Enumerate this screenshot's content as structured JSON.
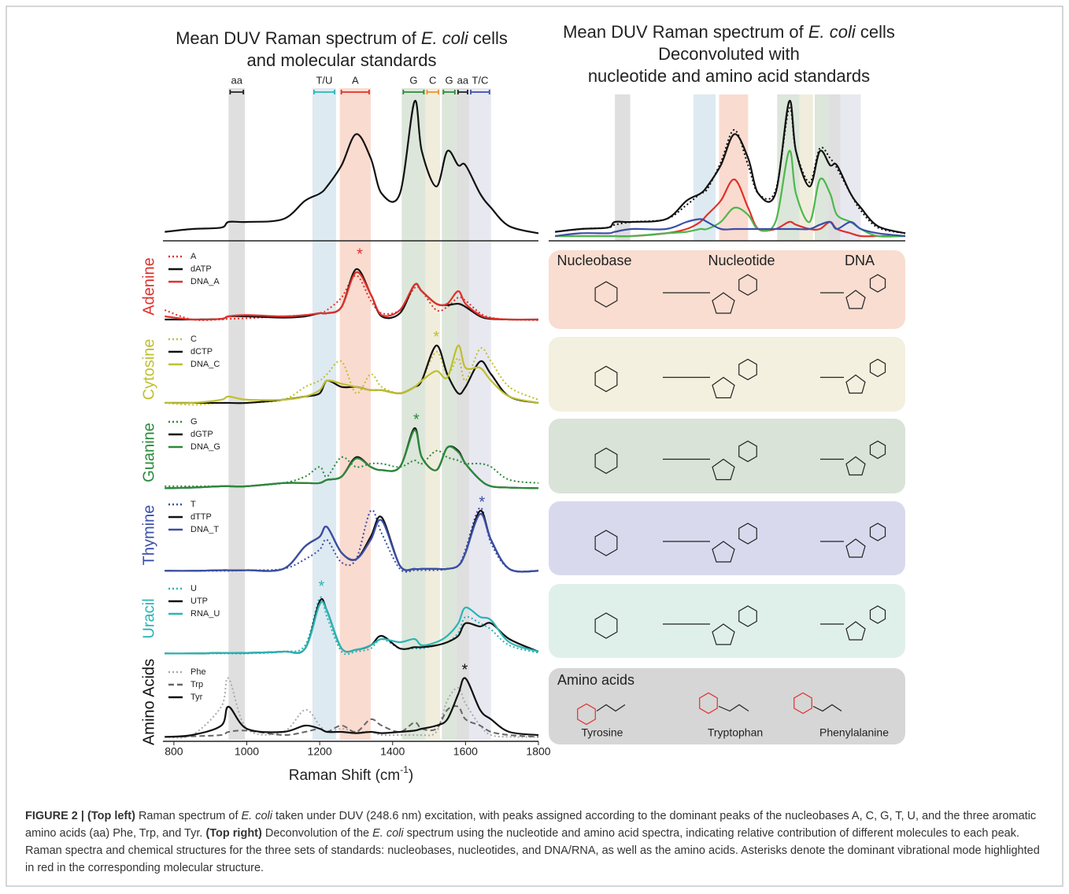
{
  "chart_data": [
    {
      "type": "line",
      "title_lines": [
        [
          {
            "text": "Mean DUV Raman spectrum of "
          },
          {
            "text": "E. coli",
            "italic": true
          },
          {
            "text": " cells"
          }
        ],
        [
          {
            "text": "and molecular standards"
          }
        ]
      ],
      "x": [
        775,
        850,
        930,
        950,
        1000,
        1100,
        1160,
        1200,
        1220,
        1260,
        1300,
        1340,
        1370,
        1420,
        1460,
        1480,
        1520,
        1550,
        1580,
        1600,
        1640,
        1670,
        1720,
        1800
      ],
      "xlim": [
        770,
        1800
      ],
      "xticks": [
        800,
        1000,
        1200,
        1400,
        1600,
        1800
      ],
      "xlabel": [
        {
          "text": "Raman Shift (cm"
        },
        {
          "text": "-1",
          "sup": true
        },
        {
          "text": ")"
        }
      ],
      "bands": [
        {
          "label": "aa",
          "range": [
            950,
            995
          ],
          "color": "#222222",
          "fill": "#d9d9d9"
        },
        {
          "label": "T/U",
          "range": [
            1180,
            1245
          ],
          "color": "#2bb5b5",
          "fill": "#d8e6ee"
        },
        {
          "label": "A",
          "range": [
            1255,
            1340
          ],
          "color": "#e0312b",
          "fill": "#f9d5c8"
        },
        {
          "label": "G",
          "range": [
            1425,
            1490
          ],
          "color": "#2a8a3a",
          "fill": "#d6e2d3"
        },
        {
          "label": "C",
          "range": [
            1490,
            1530
          ],
          "color": "#f0902a",
          "fill": "#efead7"
        },
        {
          "label": "G",
          "range": [
            1535,
            1575
          ],
          "color": "#2a8a3a",
          "fill": "#d6e2d3"
        },
        {
          "label": "aa",
          "range": [
            1575,
            1610
          ],
          "color": "#222222",
          "fill": "#d9d9d9"
        },
        {
          "label": "T/C",
          "range": [
            1610,
            1670
          ],
          "color": "#3a4fa8",
          "fill": "#e4e4ee"
        }
      ],
      "series": [
        {
          "color": "#111111",
          "dash": "solid",
          "values": [
            0.03,
            0.05,
            0.06,
            0.1,
            0.1,
            0.12,
            0.25,
            0.3,
            0.35,
            0.5,
            0.72,
            0.55,
            0.3,
            0.3,
            0.95,
            0.6,
            0.35,
            0.6,
            0.5,
            0.5,
            0.3,
            0.2,
            0.07,
            0.02
          ]
        }
      ]
    },
    {
      "type": "line",
      "title_lines": [
        [
          {
            "text": "Mean DUV Raman spectrum of "
          },
          {
            "text": "E. coli",
            "italic": true
          },
          {
            "text": " cells"
          }
        ],
        [
          {
            "text": "Deconvoluted with"
          }
        ],
        [
          {
            "text": "nucleotide and amino acid standards"
          }
        ]
      ],
      "series": [
        {
          "color": "#111111",
          "dash": "solid",
          "values": [
            0.03,
            0.05,
            0.06,
            0.1,
            0.1,
            0.12,
            0.25,
            0.3,
            0.35,
            0.5,
            0.72,
            0.55,
            0.3,
            0.3,
            0.95,
            0.6,
            0.35,
            0.6,
            0.5,
            0.5,
            0.3,
            0.2,
            0.07,
            0.02
          ]
        },
        {
          "color": "#111111",
          "dash": "dotted",
          "values": [
            0.03,
            0.05,
            0.06,
            0.08,
            0.1,
            0.12,
            0.22,
            0.3,
            0.33,
            0.52,
            0.75,
            0.5,
            0.3,
            0.32,
            0.9,
            0.6,
            0.38,
            0.62,
            0.55,
            0.48,
            0.3,
            0.18,
            0.06,
            0.02
          ]
        },
        {
          "color": "#e0312b",
          "dash": "solid",
          "values": [
            0,
            0,
            0,
            0,
            0,
            0.02,
            0.05,
            0.1,
            0.15,
            0.25,
            0.4,
            0.2,
            0.05,
            0.05,
            0.1,
            0.08,
            0.05,
            0.05,
            0.1,
            0.05,
            0.02,
            0,
            0,
            0
          ]
        },
        {
          "color": "#4cb84c",
          "dash": "solid",
          "values": [
            0,
            0,
            0,
            0,
            0,
            0.02,
            0.03,
            0.05,
            0.05,
            0.1,
            0.2,
            0.15,
            0.05,
            0.1,
            0.6,
            0.3,
            0.1,
            0.4,
            0.3,
            0.15,
            0.1,
            0.05,
            0,
            0
          ]
        },
        {
          "color": "#3a4fa8",
          "dash": "solid",
          "values": [
            0,
            0.02,
            0.02,
            0.03,
            0.05,
            0.05,
            0.1,
            0.12,
            0.1,
            0.05,
            0.05,
            0.05,
            0.05,
            0.05,
            0.05,
            0.05,
            0.05,
            0.08,
            0.1,
            0.05,
            0.1,
            0.05,
            0.02,
            0
          ]
        }
      ]
    },
    {
      "type": "line",
      "title": "Adenine",
      "title_color": "#e0312b",
      "asterisk": {
        "label": "*",
        "x": 1310,
        "color": "#e0312b"
      },
      "series": [
        {
          "name": "A",
          "color": "#e0312b",
          "dash": "dotted",
          "values": [
            0.2,
            0.05,
            0.05,
            0.06,
            0.07,
            0.1,
            0.12,
            0.15,
            0.2,
            0.4,
            0.75,
            0.35,
            0.15,
            0.2,
            0.55,
            0.5,
            0.2,
            0.25,
            0.4,
            0.35,
            0.15,
            0.08,
            0.05,
            0.04
          ]
        },
        {
          "name": "dATP",
          "color": "#111111",
          "dash": "solid",
          "values": [
            0.05,
            0.05,
            0.06,
            0.1,
            0.1,
            0.08,
            0.1,
            0.15,
            0.15,
            0.25,
            0.85,
            0.45,
            0.1,
            0.15,
            0.6,
            0.5,
            0.3,
            0.28,
            0.3,
            0.25,
            0.1,
            0.06,
            0.05,
            0.05
          ]
        },
        {
          "name": "DNA_A",
          "color": "#e0312b",
          "dash": "solid",
          "values": [
            0.1,
            0.05,
            0.06,
            0.1,
            0.12,
            0.1,
            0.12,
            0.15,
            0.15,
            0.25,
            0.8,
            0.45,
            0.12,
            0.2,
            0.6,
            0.5,
            0.3,
            0.3,
            0.5,
            0.3,
            0.12,
            0.07,
            0.05,
            0.05
          ]
        }
      ]
    },
    {
      "type": "line",
      "title": "Cytosine",
      "title_color": "#bfbf2e",
      "asterisk": {
        "label": "*",
        "x": 1520,
        "color": "#bfbf2e"
      },
      "series": [
        {
          "name": "C",
          "color": "#bfbf2e",
          "dash": "dotted",
          "values": [
            0.05,
            0.02,
            0.05,
            0.05,
            0.05,
            0.1,
            0.3,
            0.4,
            0.5,
            0.7,
            0.2,
            0.5,
            0.3,
            0.2,
            0.3,
            0.4,
            0.85,
            0.5,
            0.75,
            0.4,
            0.9,
            0.7,
            0.3,
            0.1
          ]
        },
        {
          "name": "dCTP",
          "color": "#111111",
          "dash": "solid",
          "values": [
            0.05,
            0.05,
            0.05,
            0.05,
            0.05,
            0.1,
            0.15,
            0.2,
            0.4,
            0.3,
            0.3,
            0.25,
            0.25,
            0.2,
            0.3,
            0.4,
            0.95,
            0.5,
            0.2,
            0.3,
            0.7,
            0.5,
            0.15,
            0.05
          ]
        },
        {
          "name": "DNA_C",
          "color": "#bfbf2e",
          "dash": "solid",
          "values": [
            0.05,
            0.05,
            0.1,
            0.15,
            0.1,
            0.1,
            0.15,
            0.25,
            0.4,
            0.35,
            0.3,
            0.25,
            0.25,
            0.2,
            0.3,
            0.4,
            0.55,
            0.45,
            0.95,
            0.6,
            0.6,
            0.4,
            0.15,
            0.05
          ]
        }
      ]
    },
    {
      "type": "line",
      "title": "Guanine",
      "title_color": "#2a8a3a",
      "asterisk": {
        "label": "*",
        "x": 1465,
        "color": "#2a8a3a"
      },
      "series": [
        {
          "name": "G",
          "color": "#2a8a3a",
          "dash": "dotted",
          "values": [
            0.05,
            0.05,
            0.05,
            0.05,
            0.05,
            0.1,
            0.2,
            0.35,
            0.2,
            0.5,
            0.35,
            0.4,
            0.4,
            0.35,
            0.45,
            0.4,
            0.6,
            0.5,
            0.45,
            0.4,
            0.4,
            0.35,
            0.15,
            0.1
          ]
        },
        {
          "name": "dGTP",
          "color": "#111111",
          "dash": "solid",
          "values": [
            0.02,
            0.03,
            0.05,
            0.05,
            0.05,
            0.1,
            0.1,
            0.1,
            0.15,
            0.2,
            0.5,
            0.35,
            0.3,
            0.35,
            0.95,
            0.5,
            0.3,
            0.65,
            0.6,
            0.4,
            0.15,
            0.05,
            0.03,
            0.02
          ]
        },
        {
          "name": "DNA_G",
          "color": "#2a8a3a",
          "dash": "solid",
          "values": [
            0.02,
            0.03,
            0.05,
            0.05,
            0.05,
            0.1,
            0.1,
            0.1,
            0.15,
            0.2,
            0.48,
            0.35,
            0.3,
            0.35,
            0.92,
            0.5,
            0.3,
            0.65,
            0.58,
            0.4,
            0.15,
            0.05,
            0.03,
            0.02
          ]
        }
      ]
    },
    {
      "type": "line",
      "title": "Thymine",
      "title_color": "#3a4fa8",
      "asterisk": {
        "label": "*",
        "x": 1645,
        "color": "#3a4fa8"
      },
      "series": [
        {
          "name": "T",
          "color": "#3a4fa8",
          "dash": "dotted",
          "values": [
            0.02,
            0.02,
            0.02,
            0.02,
            0.03,
            0.05,
            0.2,
            0.35,
            0.5,
            0.15,
            0.2,
            0.95,
            0.6,
            0.05,
            0.03,
            0.03,
            0.03,
            0.05,
            0.1,
            0.35,
            1.0,
            0.45,
            0.05,
            0.02
          ]
        },
        {
          "name": "dTTP",
          "color": "#111111",
          "dash": "solid",
          "values": [
            0.02,
            0.02,
            0.03,
            0.03,
            0.03,
            0.05,
            0.4,
            0.55,
            0.7,
            0.3,
            0.2,
            0.55,
            0.85,
            0.1,
            0.05,
            0.05,
            0.05,
            0.05,
            0.1,
            0.3,
            0.95,
            0.5,
            0.05,
            0.02
          ]
        },
        {
          "name": "DNA_T",
          "color": "#3a4fa8",
          "dash": "solid",
          "values": [
            0.02,
            0.02,
            0.03,
            0.03,
            0.03,
            0.05,
            0.4,
            0.55,
            0.7,
            0.3,
            0.2,
            0.5,
            0.8,
            0.1,
            0.05,
            0.05,
            0.05,
            0.05,
            0.1,
            0.3,
            0.9,
            0.5,
            0.05,
            0.02
          ]
        }
      ]
    },
    {
      "type": "line",
      "title": "Uracil",
      "title_color": "#2bb5b5",
      "asterisk": {
        "label": "*",
        "x": 1205,
        "color": "#2bb5b5"
      },
      "series": [
        {
          "name": "U",
          "color": "#2bb5b5",
          "dash": "dotted",
          "values": [
            0.02,
            0.02,
            0.02,
            0.02,
            0.02,
            0.05,
            0.15,
            0.9,
            0.6,
            0.05,
            0.05,
            0.1,
            0.25,
            0.1,
            0.1,
            0.1,
            0.15,
            0.2,
            0.35,
            0.6,
            0.5,
            0.4,
            0.15,
            0.03
          ]
        },
        {
          "name": "UTP",
          "color": "#111111",
          "dash": "solid",
          "values": [
            0.02,
            0.02,
            0.03,
            0.03,
            0.03,
            0.05,
            0.1,
            0.85,
            0.7,
            0.1,
            0.08,
            0.15,
            0.3,
            0.1,
            0.12,
            0.12,
            0.15,
            0.2,
            0.3,
            0.5,
            0.45,
            0.5,
            0.25,
            0.05
          ]
        },
        {
          "name": "RNA_U",
          "color": "#2bb5b5",
          "dash": "solid",
          "values": [
            0.02,
            0.02,
            0.03,
            0.03,
            0.03,
            0.05,
            0.1,
            0.8,
            0.7,
            0.1,
            0.08,
            0.15,
            0.25,
            0.2,
            0.25,
            0.15,
            0.2,
            0.3,
            0.5,
            0.75,
            0.6,
            0.55,
            0.2,
            0.05
          ]
        }
      ]
    },
    {
      "type": "line",
      "title": "Amino Acids",
      "title_color": "#111111",
      "asterisk": {
        "label": "*",
        "x": 1598,
        "color": "#111111"
      },
      "series": [
        {
          "name": "Phe",
          "color": "#aaaaaa",
          "dash": "dotted",
          "values": [
            0.02,
            0.05,
            0.5,
            0.95,
            0.15,
            0.1,
            0.45,
            0.2,
            0.1,
            0.15,
            0.1,
            0.1,
            0.05,
            0.05,
            0.05,
            0.05,
            0.1,
            0.6,
            0.8,
            0.55,
            0.2,
            0.05,
            0.02,
            0.02
          ]
        },
        {
          "name": "Trp",
          "color": "#666666",
          "dash": "dashed",
          "values": [
            0.02,
            0.03,
            0.05,
            0.1,
            0.12,
            0.05,
            0.1,
            0.15,
            0.1,
            0.2,
            0.1,
            0.3,
            0.2,
            0.1,
            0.25,
            0.15,
            0.15,
            0.45,
            0.5,
            0.3,
            0.2,
            0.1,
            0.05,
            0.02
          ]
        },
        {
          "name": "Tyr",
          "color": "#111111",
          "dash": "solid",
          "values": [
            0.02,
            0.05,
            0.2,
            0.5,
            0.15,
            0.1,
            0.2,
            0.15,
            0.1,
            0.1,
            0.08,
            0.1,
            0.08,
            0.1,
            0.12,
            0.15,
            0.2,
            0.3,
            0.7,
            0.95,
            0.45,
            0.3,
            0.1,
            0.05
          ]
        }
      ]
    }
  ],
  "structure_panels": [
    {
      "fill": "#f9ddd0",
      "texts": [
        "Nucleobase",
        "Nucleotide",
        "DNA"
      ]
    },
    {
      "fill": "#f3f0df"
    },
    {
      "fill": "#d9e3d7"
    },
    {
      "fill": "#d9d9ee"
    },
    {
      "fill": "#dff0ea"
    },
    {
      "fill": "#d6d6d6",
      "texts": [
        "Amino acids",
        "Tyrosine",
        "Tryptophan",
        "Phenylalanine"
      ]
    }
  ],
  "caption": [
    {
      "text": "FIGURE 2 | (Top left)",
      "bold": true
    },
    {
      "text": " Raman spectrum of "
    },
    {
      "text": "E. coli",
      "italic": true
    },
    {
      "text": " taken under DUV (248.6 nm) excitation, with peaks assigned according to the dominant peaks of the nucleobases A, C, G, T, U, and the three aromatic amino acids (aa) Phe, Trp, and Tyr. "
    },
    {
      "text": "(Top right)",
      "bold": true
    },
    {
      "text": " Deconvolution of the "
    },
    {
      "text": "E. coli",
      "italic": true
    },
    {
      "text": " spectrum using the nucleotide and amino acid spectra, indicating relative contribution of different molecules to each peak. Raman spectra and chemical structures for the three sets of standards: nucleobases, nucleotides, and DNA/RNA, as well as the amino acids. Asterisks denote the dominant vibrational mode highlighted in red in the corresponding molecular structure."
    }
  ]
}
